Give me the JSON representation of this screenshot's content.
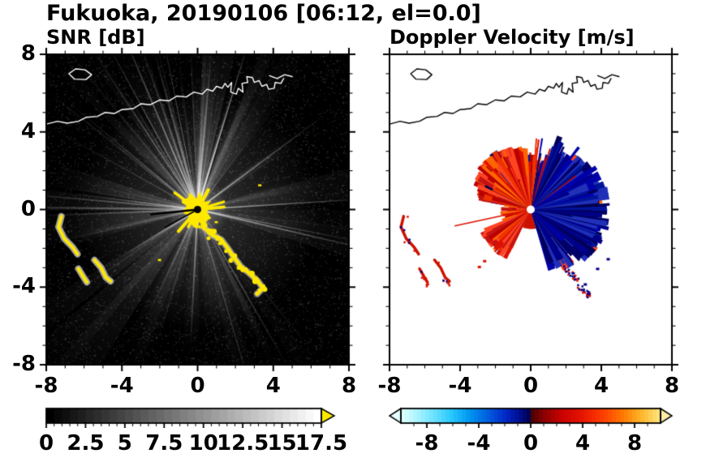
{
  "title": "Fukuoka, 20190106 [06:12, el=0.0]",
  "chart_data": [
    {
      "type": "heatmap",
      "title": "SNR [dB]",
      "xlim": [
        -8,
        8
      ],
      "ylim": [
        -8,
        8
      ],
      "x_tick_values": [
        -8,
        -4,
        0,
        4,
        8
      ],
      "x_tick_labels": [
        "-8",
        "-4",
        "0",
        "4",
        "8"
      ],
      "y_tick_values": [
        8,
        4,
        0,
        -4,
        -8
      ],
      "y_tick_labels": [
        "8",
        "4",
        "0",
        "-4",
        "-8"
      ],
      "minor_tick_step": 1,
      "background": "#000000",
      "colorbar": {
        "min": 0,
        "max": 17.5,
        "tick_values": [
          0,
          2.5,
          5,
          7.5,
          10,
          12.5,
          15,
          17.5
        ],
        "tick_labels": [
          "0",
          "2.5",
          "5",
          "7.5",
          "10",
          "12.5",
          "15",
          "17.5"
        ],
        "minor_step": 0.5,
        "stops": [
          [
            0,
            "#000000"
          ],
          [
            1,
            "#ffffff"
          ]
        ],
        "over_arrow_color": "#ffe800"
      },
      "features": {
        "radar_center": [
          0,
          0
        ],
        "center_echo": "bright yellow high-SNR cluster at radar site with black dot at origin",
        "radial_streaks": "white noisy beams radiating from center over black background, brightest toward upper-left",
        "clutter_band": "yellow echo band curving from near center toward (3.3,-4.3)",
        "clutter_arcs": "yellow terrain arcs near lower-left around (-7,-1) to (-4.6,-3.7)",
        "coastline_color": "#ffffff"
      }
    },
    {
      "type": "heatmap",
      "title": "Doppler Velocity [m/s]",
      "xlim": [
        -8,
        8
      ],
      "ylim": [
        -8,
        8
      ],
      "x_tick_values": [
        -8,
        -4,
        0,
        4,
        8
      ],
      "x_tick_labels": [
        "-8",
        "-4",
        "0",
        "4",
        "8"
      ],
      "y_tick_values": [
        8,
        4,
        0,
        -4,
        -8
      ],
      "y_tick_labels": [],
      "minor_tick_step": 1,
      "background": "#ffffff",
      "colorbar": {
        "min": -10,
        "max": 10,
        "tick_values": [
          -8,
          -4,
          0,
          4,
          8
        ],
        "tick_labels": [
          "-8",
          "-4",
          "0",
          "4",
          "8"
        ],
        "minor_step": 1,
        "stops": [
          [
            0.0,
            "#dcffff"
          ],
          [
            0.05,
            "#b0f4ff"
          ],
          [
            0.12,
            "#6ce2ff"
          ],
          [
            0.19,
            "#28c8ff"
          ],
          [
            0.26,
            "#0096f0"
          ],
          [
            0.33,
            "#0060e0"
          ],
          [
            0.4,
            "#0028c8"
          ],
          [
            0.46,
            "#000d8a"
          ],
          [
            0.495,
            "#00004d"
          ],
          [
            0.505,
            "#4d0000"
          ],
          [
            0.55,
            "#8a0000"
          ],
          [
            0.62,
            "#c80000"
          ],
          [
            0.7,
            "#e61400"
          ],
          [
            0.78,
            "#ff3c00"
          ],
          [
            0.86,
            "#ff7800"
          ],
          [
            0.93,
            "#ffb428"
          ],
          [
            1.0,
            "#ffe278"
          ]
        ],
        "under_arrow_color": "#e6ffff",
        "over_arrow_color": "#ffedaa"
      },
      "features": {
        "radar_center": [
          0,
          0
        ],
        "negative_velocity_lobe": "dark navy/blue spiky lobe east and southeast of radar",
        "positive_velocity_lobe": "red/orange spiky lobe northwest of radar plus red wedge to southwest",
        "thin_ray": "thin red ray extending west-southwest from center",
        "clutter_arcs": "red arcs with blue specks at lower-left, mixed red/blue speck arcs to the lower-right",
        "coastline_color": "#000000"
      }
    }
  ],
  "map": {
    "coast": [
      [
        -8.0,
        4.4
      ],
      [
        -7.4,
        4.55
      ],
      [
        -6.9,
        4.45
      ],
      [
        -6.3,
        4.55
      ],
      [
        -5.9,
        4.75
      ],
      [
        -5.3,
        4.8
      ],
      [
        -4.9,
        5.0
      ],
      [
        -4.4,
        4.95
      ],
      [
        -4.0,
        5.15
      ],
      [
        -3.4,
        5.2
      ],
      [
        -3.0,
        5.45
      ],
      [
        -2.5,
        5.4
      ],
      [
        -2.0,
        5.65
      ],
      [
        -1.5,
        5.6
      ],
      [
        -1.1,
        5.85
      ],
      [
        -0.6,
        5.8
      ],
      [
        -0.2,
        6.05
      ],
      [
        0.25,
        5.95
      ],
      [
        0.5,
        6.2
      ],
      [
        0.8,
        6.1
      ],
      [
        1.0,
        6.35
      ],
      [
        1.3,
        6.25
      ],
      [
        1.45,
        6.5
      ],
      [
        1.6,
        6.3
      ],
      [
        1.8,
        6.55
      ],
      [
        1.75,
        6.05
      ],
      [
        2.05,
        5.95
      ],
      [
        2.15,
        6.25
      ],
      [
        2.4,
        6.05
      ],
      [
        2.35,
        6.5
      ],
      [
        2.65,
        6.55
      ],
      [
        2.6,
        6.85
      ],
      [
        2.9,
        6.8
      ],
      [
        3.0,
        6.55
      ],
      [
        3.25,
        6.65
      ],
      [
        3.4,
        6.35
      ],
      [
        3.65,
        6.45
      ],
      [
        3.75,
        6.2
      ],
      [
        4.05,
        6.25
      ],
      [
        4.1,
        6.55
      ],
      [
        4.4,
        6.5
      ],
      [
        4.55,
        6.75
      ]
    ],
    "island": [
      [
        -6.8,
        7.0
      ],
      [
        -6.45,
        7.25
      ],
      [
        -5.95,
        7.2
      ],
      [
        -5.6,
        6.95
      ],
      [
        -5.9,
        6.7
      ],
      [
        -6.5,
        6.72
      ]
    ],
    "breakwater": [
      [
        3.8,
        6.9
      ],
      [
        4.2,
        6.75
      ],
      [
        4.6,
        6.95
      ],
      [
        5.0,
        6.85
      ]
    ]
  },
  "echoes": {
    "snr": {
      "arcs": [
        [
          [
            -7.2,
            -0.35
          ],
          [
            -7.35,
            -0.9
          ],
          [
            -7.05,
            -1.5
          ],
          [
            -6.6,
            -1.95
          ],
          [
            -6.35,
            -2.3
          ]
        ],
        [
          [
            -5.45,
            -2.6
          ],
          [
            -5.1,
            -3.0
          ],
          [
            -4.85,
            -3.5
          ],
          [
            -4.6,
            -3.7
          ]
        ],
        [
          [
            -6.3,
            -3.05
          ],
          [
            -6.05,
            -3.45
          ],
          [
            -5.85,
            -3.75
          ]
        ]
      ],
      "band": [
        [
          0.3,
          -0.9
        ],
        [
          0.75,
          -1.3
        ],
        [
          1.25,
          -1.55
        ],
        [
          1.6,
          -2.0
        ],
        [
          1.95,
          -2.5
        ],
        [
          2.3,
          -2.95
        ],
        [
          2.75,
          -3.3
        ],
        [
          3.2,
          -3.7
        ],
        [
          3.45,
          -4.05
        ],
        [
          3.15,
          -4.35
        ]
      ],
      "specks": [
        [
          3.2,
          1.3
        ],
        [
          -2.1,
          -2.55
        ],
        [
          0.9,
          -0.6
        ]
      ]
    },
    "doppler": {
      "arcs": [
        [
          [
            -7.2,
            -0.35
          ],
          [
            -7.35,
            -0.9
          ],
          [
            -7.05,
            -1.5
          ],
          [
            -6.6,
            -1.95
          ],
          [
            -6.35,
            -2.3
          ]
        ],
        [
          [
            -5.45,
            -2.6
          ],
          [
            -5.1,
            -3.0
          ],
          [
            -4.85,
            -3.5
          ],
          [
            -4.6,
            -3.7
          ]
        ],
        [
          [
            -6.3,
            -3.05
          ],
          [
            -6.05,
            -3.45
          ],
          [
            -5.85,
            -3.75
          ]
        ]
      ],
      "speck_arcs": [
        [
          [
            1.7,
            -2.9
          ],
          [
            2.2,
            -3.3
          ],
          [
            2.7,
            -3.6
          ]
        ],
        [
          [
            2.6,
            -3.9
          ],
          [
            3.1,
            -4.2
          ],
          [
            3.3,
            -4.45
          ]
        ]
      ],
      "red_specks": [
        [
          -2.7,
          -2.6
        ],
        [
          -3.0,
          -2.9
        ]
      ],
      "blue_specks": [
        [
          3.7,
          -3.0
        ],
        [
          4.3,
          -2.5
        ],
        [
          3.0,
          -3.8
        ]
      ]
    }
  }
}
